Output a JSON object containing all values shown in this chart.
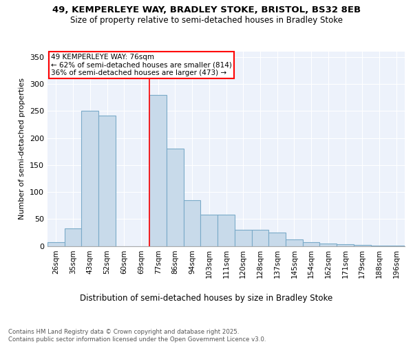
{
  "title1": "49, KEMPERLEYE WAY, BRADLEY STOKE, BRISTOL, BS32 8EB",
  "title2": "Size of property relative to semi-detached houses in Bradley Stoke",
  "xlabel": "Distribution of semi-detached houses by size in Bradley Stoke",
  "ylabel": "Number of semi-detached properties",
  "footnote": "Contains HM Land Registry data © Crown copyright and database right 2025.\nContains public sector information licensed under the Open Government Licence v3.0.",
  "categories": [
    "26sqm",
    "35sqm",
    "43sqm",
    "52sqm",
    "60sqm",
    "69sqm",
    "77sqm",
    "86sqm",
    "94sqm",
    "103sqm",
    "111sqm",
    "120sqm",
    "128sqm",
    "137sqm",
    "145sqm",
    "154sqm",
    "162sqm",
    "171sqm",
    "179sqm",
    "188sqm",
    "196sqm"
  ],
  "values": [
    7,
    33,
    250,
    242,
    0,
    0,
    280,
    180,
    85,
    58,
    58,
    30,
    30,
    25,
    12,
    7,
    5,
    3,
    2,
    1,
    1
  ],
  "bar_color": "#c8daea",
  "bar_edge_color": "#7aaac8",
  "red_line_index": 6,
  "annotation_title": "49 KEMPERLEYE WAY: 76sqm",
  "annotation_line1": "← 62% of semi-detached houses are smaller (814)",
  "annotation_line2": "36% of semi-detached houses are larger (473) →",
  "ylim": [
    0,
    360
  ],
  "yticks": [
    0,
    50,
    100,
    150,
    200,
    250,
    300,
    350
  ],
  "background_color": "#edf2fb",
  "grid_color": "white"
}
